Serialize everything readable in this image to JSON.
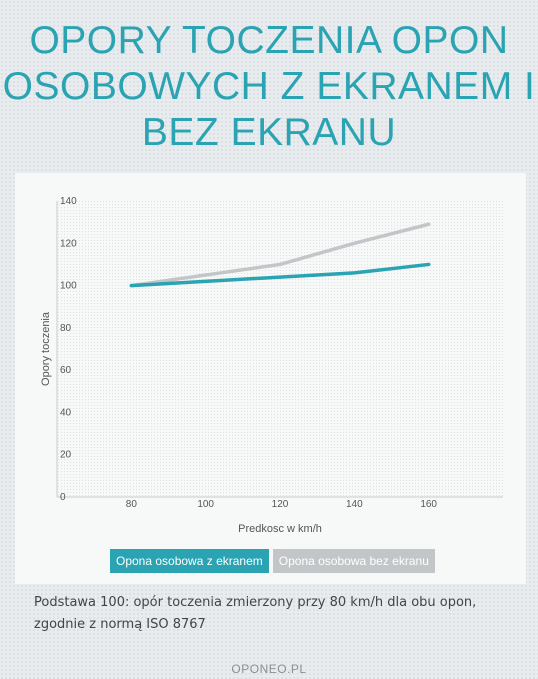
{
  "title_lines": [
    "OPORY TOCZENIA OPON",
    "OSOBOWYCH Z EKRANEM I",
    "BEZ EKRANU"
  ],
  "chart_data": {
    "type": "line",
    "x": [
      80,
      120,
      140,
      160
    ],
    "xticks": [
      80,
      100,
      120,
      140,
      160
    ],
    "yticks": [
      0,
      20,
      40,
      60,
      80,
      100,
      120,
      140
    ],
    "xlim": [
      60,
      180
    ],
    "ylim": [
      0,
      140
    ],
    "xlabel": "Predkosc w km/h",
    "ylabel": "Opory toczenia",
    "grid": false,
    "legend_position": "bottom",
    "series": [
      {
        "name": "Opona osobowa z ekranem",
        "color": "#2aa3b3",
        "values": [
          100,
          104,
          106,
          110
        ]
      },
      {
        "name": "Opona osobowa bez ekranu",
        "color": "#c2c6c8",
        "values": [
          100,
          110,
          120,
          129
        ]
      }
    ]
  },
  "note": "Podstawa 100: opór toczenia zmierzony przy 80 km/h dla obu opon, zgodnie z normą ISO 8767",
  "footer": "OPONEO.PL"
}
